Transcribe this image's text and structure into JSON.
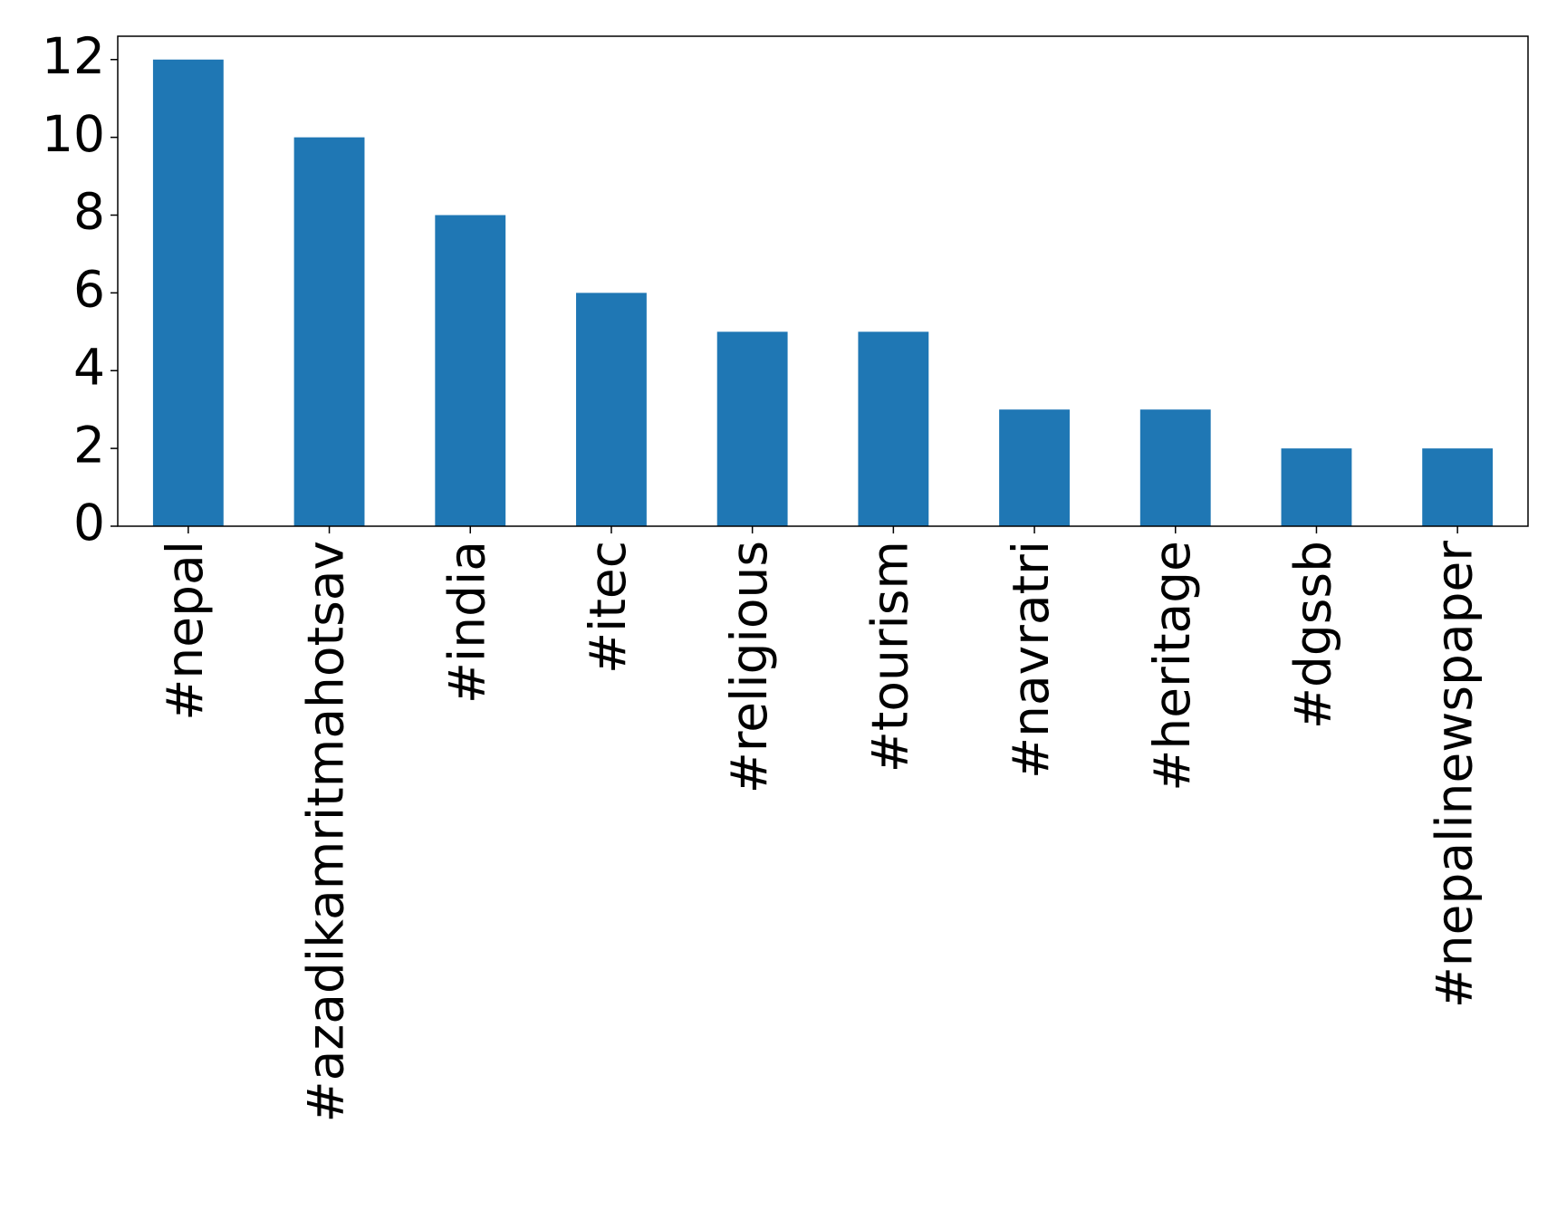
{
  "chart_data": {
    "type": "bar",
    "categories": [
      "#nepal",
      "#azadikamritmahotsav",
      "#india",
      "#itec",
      "#religious",
      "#tourism",
      "#navratri",
      "#heritage",
      "#dgssb",
      "#nepalinewspaper"
    ],
    "values": [
      12,
      10,
      8,
      6,
      5,
      5,
      3,
      3,
      2,
      2
    ],
    "color": "#1f77b4",
    "ylim": [
      0,
      12.6
    ],
    "yticks": [
      0,
      2,
      4,
      6,
      8,
      10,
      12
    ],
    "grid": false
  }
}
